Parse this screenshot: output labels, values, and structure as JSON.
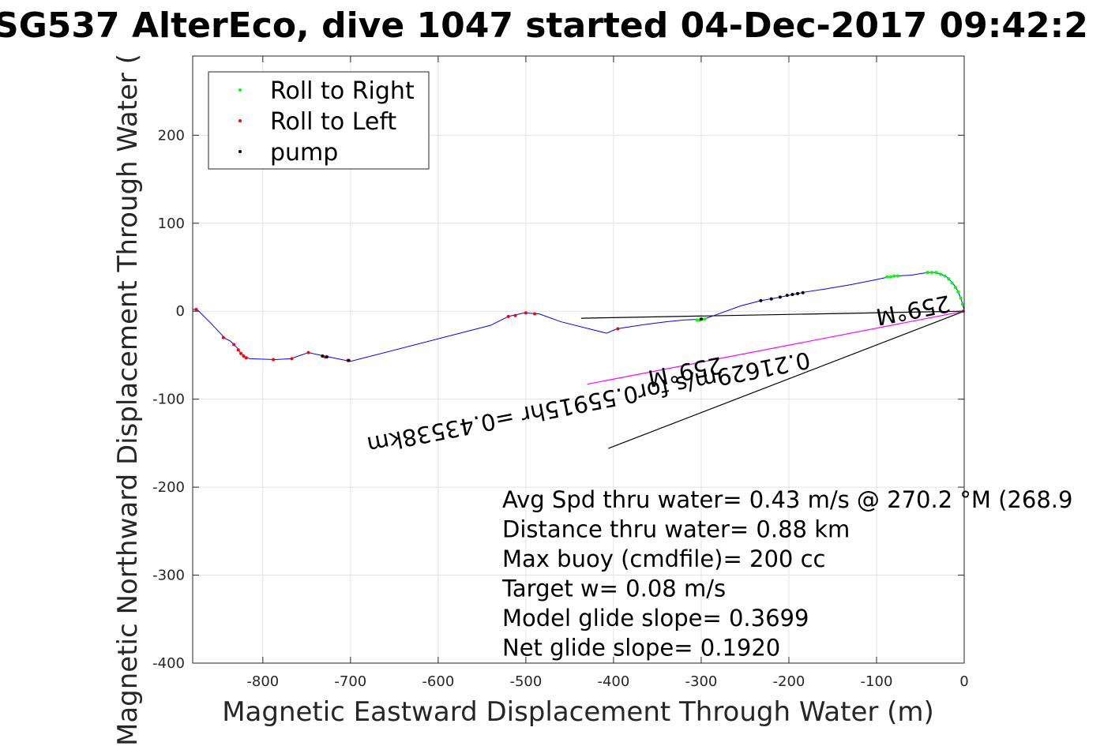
{
  "chart_data": {
    "type": "line",
    "title": "SG537 AlterEco, dive 1047 started 04-Dec-2017 09:42:2",
    "xlabel": "Magnetic Eastward Displacement Through Water (m)",
    "ylabel": "Magnetic Northward Displacement Through Water (",
    "xlim": [
      -880,
      0
    ],
    "ylim": [
      -400,
      290
    ],
    "x_ticks": [
      -800,
      -700,
      -600,
      -500,
      -400,
      -300,
      -200,
      -100,
      0
    ],
    "x_tick_labels": [
      "-800",
      "-700",
      "-600",
      "-500",
      "-400",
      "-300",
      "-200",
      "-100",
      "0"
    ],
    "y_ticks": [
      200,
      100,
      0,
      -100,
      -200,
      -300,
      -400
    ],
    "y_tick_labels": [
      "200",
      "100",
      "0",
      "-100",
      "-200",
      "-300",
      "-400"
    ],
    "grid": true,
    "legend_position": "top-left",
    "legend": [
      {
        "name": "Roll to Right",
        "color": "#00ff00"
      },
      {
        "name": "Roll to Left",
        "color": "#ff0000"
      },
      {
        "name": "pump",
        "color": "#000000"
      }
    ],
    "track": {
      "color": "#0000ff",
      "points": [
        [
          0,
          0
        ],
        [
          -1,
          5
        ],
        [
          -3,
          12
        ],
        [
          -6,
          20
        ],
        [
          -10,
          28
        ],
        [
          -15,
          34
        ],
        [
          -20,
          39
        ],
        [
          -26,
          42
        ],
        [
          -33,
          44
        ],
        [
          -40,
          44
        ],
        [
          -48,
          43
        ],
        [
          -60,
          41
        ],
        [
          -78,
          40
        ],
        [
          -86,
          39
        ],
        [
          -100,
          36
        ],
        [
          -130,
          30
        ],
        [
          -160,
          25
        ],
        [
          -180,
          22
        ],
        [
          -200,
          18
        ],
        [
          -215,
          15
        ],
        [
          -232,
          12
        ],
        [
          -255,
          6
        ],
        [
          -280,
          -3
        ],
        [
          -297,
          -9
        ],
        [
          -320,
          -10
        ],
        [
          -340,
          -12
        ],
        [
          -355,
          -14
        ],
        [
          -370,
          -16
        ],
        [
          -396,
          -20
        ],
        [
          -408,
          -25
        ],
        [
          -460,
          -12
        ],
        [
          -485,
          -3
        ],
        [
          -502,
          -2
        ],
        [
          -520,
          -6
        ],
        [
          -540,
          -16
        ],
        [
          -700,
          -57
        ],
        [
          -725,
          -52
        ],
        [
          -748,
          -47
        ],
        [
          -768,
          -54
        ],
        [
          -786,
          -55
        ],
        [
          -815,
          -54
        ],
        [
          -820,
          -52
        ],
        [
          -825,
          -48
        ],
        [
          -829,
          -42
        ],
        [
          -833,
          -38
        ],
        [
          -837,
          -34
        ],
        [
          -843,
          -31
        ],
        [
          -858,
          -15
        ],
        [
          -875,
          2
        ],
        [
          -880,
          2
        ]
      ]
    },
    "roll_right_points": [
      [
        -2,
        8
      ],
      [
        -4,
        15
      ],
      [
        -7,
        22
      ],
      [
        -10,
        27
      ],
      [
        -14,
        32
      ],
      [
        -18,
        37
      ],
      [
        -22,
        40
      ],
      [
        -27,
        42
      ],
      [
        -32,
        44
      ],
      [
        -37,
        44
      ],
      [
        -42,
        44
      ],
      [
        -76,
        40
      ],
      [
        -80,
        40
      ],
      [
        -84,
        39
      ],
      [
        -88,
        39
      ],
      [
        -296,
        -9
      ],
      [
        -299,
        -9
      ],
      [
        -302,
        -10
      ],
      [
        -305,
        -10
      ]
    ],
    "roll_left_points": [
      [
        -1,
        0
      ],
      [
        -876,
        2
      ],
      [
        -845,
        -30
      ],
      [
        -833,
        -38
      ],
      [
        -828,
        -44
      ],
      [
        -825,
        -48
      ],
      [
        -822,
        -51
      ],
      [
        -819,
        -53
      ],
      [
        -788,
        -55
      ],
      [
        -767,
        -54
      ],
      [
        -748,
        -47
      ],
      [
        -729,
        -52
      ],
      [
        -703,
        -56
      ],
      [
        -520,
        -6
      ],
      [
        -512,
        -5
      ],
      [
        -500,
        -2
      ],
      [
        -490,
        -3
      ],
      [
        -395,
        -20
      ]
    ],
    "pump_points": [
      [
        -184,
        21
      ],
      [
        -190,
        20
      ],
      [
        -196,
        19
      ],
      [
        -202,
        18
      ],
      [
        -210,
        16
      ],
      [
        -220,
        14
      ],
      [
        -232,
        12
      ],
      [
        -300,
        -9
      ],
      [
        -727,
        -52
      ],
      [
        -732,
        -51
      ],
      [
        -702,
        -56
      ]
    ],
    "reference_lines": [
      {
        "name": "depth-averaged current",
        "color": "#000000",
        "points": [
          [
            0,
            0
          ],
          [
            -437,
            -8
          ]
        ]
      },
      {
        "name": "net displacement",
        "color": "#000000",
        "points": [
          [
            0,
            0
          ],
          [
            -406,
            -156
          ]
        ]
      },
      {
        "name": "heading track",
        "color": "#ff00ff",
        "points": [
          [
            0,
            0
          ],
          [
            -430,
            -83
          ]
        ]
      }
    ],
    "rotated_labels": [
      {
        "text": "0.21629m/s for0.55915hr =0.43538km",
        "x": -430,
        "y": -95
      },
      {
        "text": "259°M",
        "x": -320,
        "y": -60
      },
      {
        "text": "259°M",
        "x": -60,
        "y": 10
      }
    ],
    "annotations": [
      "Avg Spd thru water=  0.43 m/s @ 270.2 °M (268.9",
      "Distance thru water=  0.88 km",
      "Max buoy (cmdfile)= 200 cc",
      "Target w= 0.08 m/s",
      "Model glide slope= 0.3699",
      "Net glide slope= 0.1920"
    ]
  }
}
